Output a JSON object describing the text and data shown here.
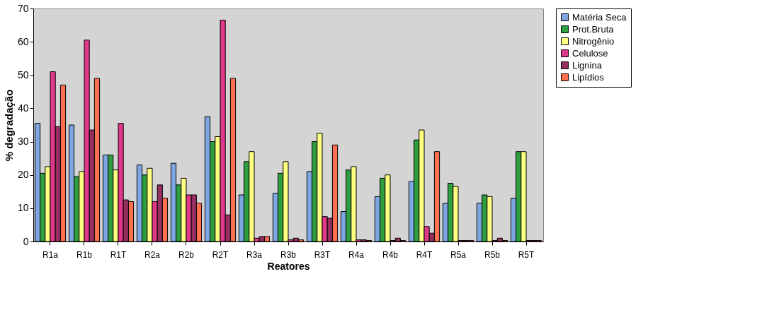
{
  "chart_data": {
    "type": "bar",
    "xlabel": "Reatores",
    "ylabel": "% degradação",
    "categories": [
      "R1a",
      "R1b",
      "R1T",
      "R2a",
      "R2b",
      "R2T",
      "R3a",
      "R3b",
      "R3T",
      "R4a",
      "R4b",
      "R4T",
      "R5a",
      "R5b",
      "R5T"
    ],
    "series": [
      {
        "name": "Matéria Seca",
        "color": "#7ea6e0",
        "values": [
          35.5,
          35,
          26,
          23,
          23.5,
          37.5,
          14,
          14.5,
          21,
          9,
          13.5,
          18,
          11.5,
          11.5,
          13
        ]
      },
      {
        "name": "Prot.Bruta",
        "color": "#2e9e40",
        "values": [
          20.5,
          19.5,
          26,
          20,
          17,
          30,
          24,
          20.5,
          30,
          21.5,
          19,
          30.5,
          17.5,
          14,
          27
        ]
      },
      {
        "name": "Nitrogênio",
        "color": "#ffff80",
        "values": [
          22.5,
          21,
          21.5,
          22,
          19,
          31.5,
          27,
          24,
          32.5,
          22.5,
          20,
          33.5,
          16.5,
          13.5,
          27
        ]
      },
      {
        "name": "Celulose",
        "color": "#e0388a",
        "values": [
          51,
          60.5,
          35.5,
          12,
          14,
          66.5,
          1,
          0.5,
          7.5,
          0.5,
          0.3,
          4.5,
          0.3,
          0.3,
          0.3
        ]
      },
      {
        "name": "Lignina",
        "color": "#963060",
        "values": [
          34.5,
          33.5,
          12.5,
          17,
          14,
          8,
          1.5,
          1,
          7,
          0.5,
          1,
          2.5,
          0.3,
          1,
          0.3
        ]
      },
      {
        "name": "Lipídios",
        "color": "#ff7050",
        "values": [
          47,
          49,
          12,
          13,
          11.5,
          49,
          1.5,
          0.5,
          29,
          0.3,
          0.3,
          27,
          0.3,
          0.3,
          0.3
        ]
      }
    ],
    "ylim": [
      0,
      70
    ],
    "yticks": [
      0,
      10,
      20,
      30,
      40,
      50,
      60,
      70
    ],
    "grid": false,
    "legend": "right"
  }
}
